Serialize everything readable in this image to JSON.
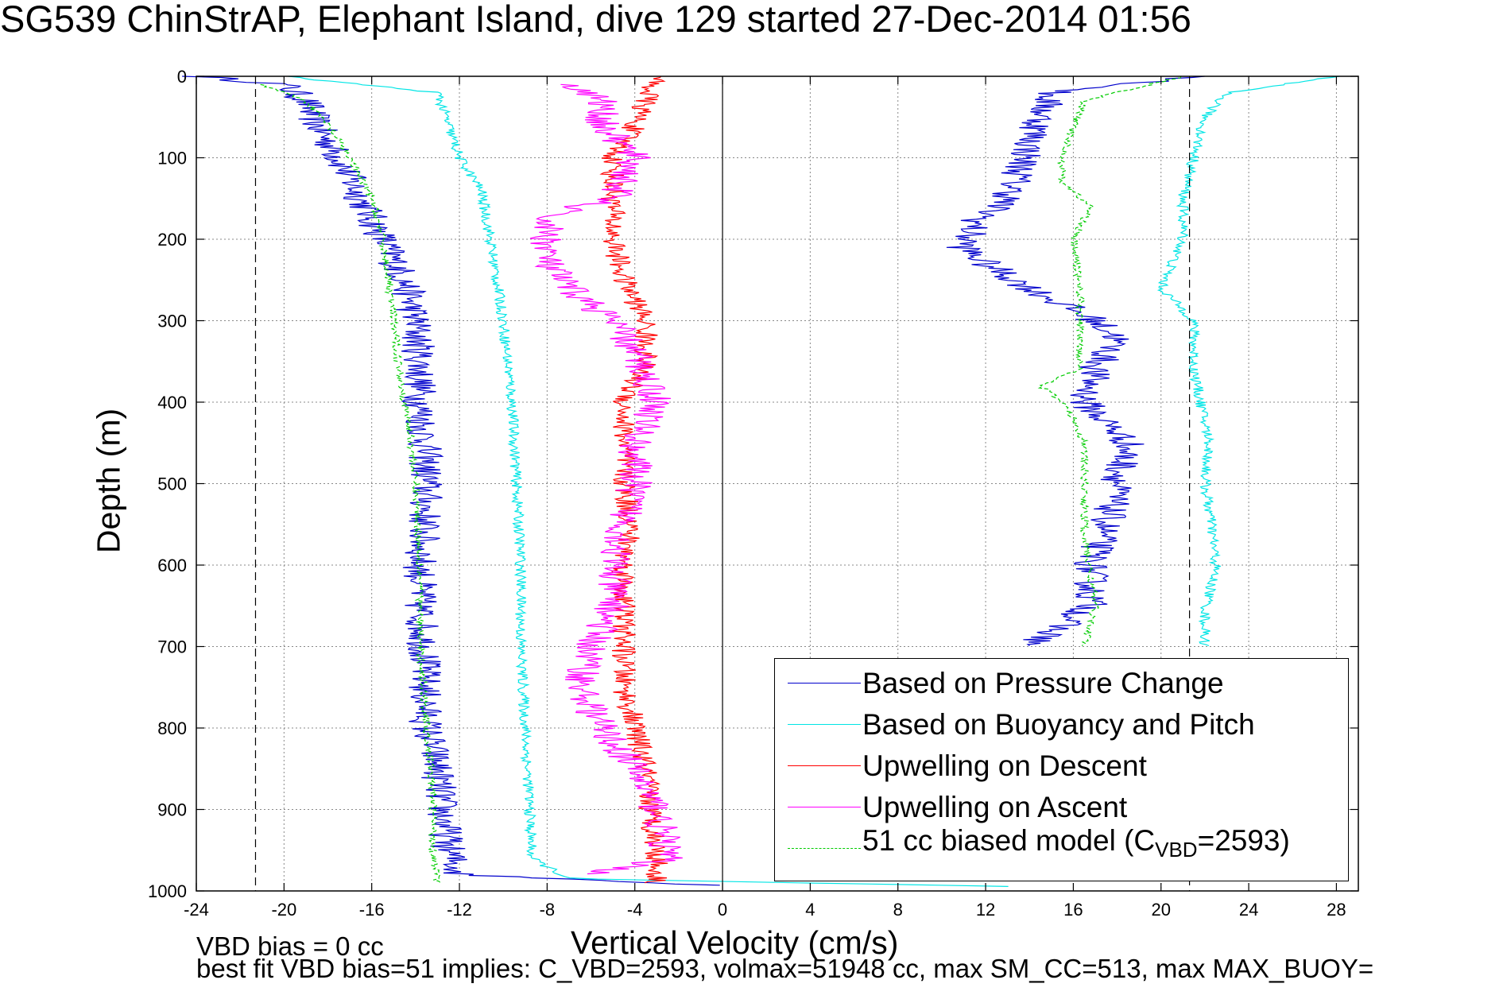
{
  "title": "SG539 ChinStrAP, Elephant Island, dive 129 started 27-Dec-2014 01:56",
  "xlabel": "Vertical Velocity (cm/s)",
  "ylabel": "Depth (m)",
  "footer_line1": "VBD bias = 0 cc",
  "footer_line2": "best fit VBD bias=51 implies: C_VBD=2593, volmax=51948 cc, max SM_CC=513, max MAX_BUOY=",
  "legend": {
    "items": [
      {
        "label": "Based on Pressure Change",
        "color": "#0000cc",
        "style": "solid"
      },
      {
        "label": "Based on Buoyancy and Pitch",
        "color": "#00e5e5",
        "style": "solid"
      },
      {
        "label": "Upwelling on Descent",
        "color": "#ff0000",
        "style": "solid"
      },
      {
        "label": "Upwelling on Ascent",
        "color": "#ff00ff",
        "style": "solid"
      },
      {
        "label_main": "51 cc biased model (C",
        "label_sub": "VBD",
        "label_end": "=2593)",
        "color": "#00cc00",
        "style": "dashed"
      }
    ]
  },
  "chart_data": {
    "type": "line",
    "xlim": [
      -24,
      29
    ],
    "ylim": [
      0,
      1000
    ],
    "y_reversed": true,
    "grid": true,
    "xticks": [
      -24,
      -20,
      -16,
      -12,
      -8,
      -4,
      0,
      4,
      8,
      12,
      16,
      20,
      24,
      28
    ],
    "yticks": [
      0,
      100,
      200,
      300,
      400,
      500,
      600,
      700,
      800,
      900,
      1000
    ],
    "reference_lines": {
      "zero": 0,
      "dashed": [
        -21.3,
        21.3
      ]
    },
    "legend_position": "bottom-right",
    "series": [
      {
        "name": "Based on Pressure Change",
        "color": "#0000cc",
        "noise": 0.8,
        "descent": [
          [
            0,
            -24
          ],
          [
            10,
            -20
          ],
          [
            30,
            -19
          ],
          [
            60,
            -18.5
          ],
          [
            100,
            -17.5
          ],
          [
            150,
            -16.5
          ],
          [
            200,
            -15.5
          ],
          [
            250,
            -14.5
          ],
          [
            300,
            -14
          ],
          [
            350,
            -13.8
          ],
          [
            400,
            -13.8
          ],
          [
            450,
            -13.6
          ],
          [
            500,
            -13.5
          ],
          [
            550,
            -13.6
          ],
          [
            600,
            -13.8
          ],
          [
            650,
            -13.8
          ],
          [
            700,
            -13.6
          ],
          [
            750,
            -13.6
          ],
          [
            800,
            -13.5
          ],
          [
            850,
            -13
          ],
          [
            900,
            -12.8
          ],
          [
            950,
            -12.5
          ],
          [
            980,
            -12
          ],
          [
            993,
            0
          ]
        ],
        "ascent": [
          [
            0,
            22
          ],
          [
            20,
            15
          ],
          [
            50,
            14.5
          ],
          [
            100,
            13.8
          ],
          [
            150,
            13
          ],
          [
            180,
            11.5
          ],
          [
            210,
            11
          ],
          [
            230,
            12
          ],
          [
            260,
            14
          ],
          [
            300,
            17
          ],
          [
            320,
            18
          ],
          [
            360,
            17
          ],
          [
            400,
            16.5
          ],
          [
            450,
            18.5
          ],
          [
            500,
            18
          ],
          [
            550,
            17.5
          ],
          [
            600,
            16.8
          ],
          [
            650,
            16.8
          ],
          [
            700,
            14
          ]
        ]
      },
      {
        "name": "Based on Buoyancy and Pitch",
        "color": "#00e5e5",
        "noise": 0.25,
        "descent": [
          [
            0,
            -20
          ],
          [
            20,
            -13
          ],
          [
            60,
            -12.5
          ],
          [
            100,
            -12
          ],
          [
            140,
            -11
          ],
          [
            200,
            -10.6
          ],
          [
            300,
            -10
          ],
          [
            400,
            -9.6
          ],
          [
            500,
            -9.4
          ],
          [
            600,
            -9.2
          ],
          [
            700,
            -9.2
          ],
          [
            800,
            -9
          ],
          [
            900,
            -8.8
          ],
          [
            960,
            -8.7
          ],
          [
            985,
            -7
          ],
          [
            995,
            14
          ]
        ],
        "ascent": [
          [
            0,
            28
          ],
          [
            20,
            23
          ],
          [
            50,
            22
          ],
          [
            100,
            21.5
          ],
          [
            150,
            21
          ],
          [
            200,
            21
          ],
          [
            260,
            20
          ],
          [
            300,
            21.5
          ],
          [
            360,
            21.5
          ],
          [
            400,
            21.8
          ],
          [
            450,
            22.2
          ],
          [
            500,
            22
          ],
          [
            550,
            22.3
          ],
          [
            600,
            22.5
          ],
          [
            660,
            22
          ],
          [
            700,
            22
          ]
        ]
      },
      {
        "name": "Upwelling on Descent",
        "color": "#ff0000",
        "noise": 0.55,
        "descent": [
          [
            0,
            -3
          ],
          [
            30,
            -3.5
          ],
          [
            60,
            -4
          ],
          [
            100,
            -5
          ],
          [
            150,
            -5
          ],
          [
            200,
            -5
          ],
          [
            250,
            -4.5
          ],
          [
            300,
            -3.5
          ],
          [
            350,
            -3.5
          ],
          [
            400,
            -4.5
          ],
          [
            450,
            -4.5
          ],
          [
            500,
            -4.5
          ],
          [
            550,
            -4.2
          ],
          [
            600,
            -4.5
          ],
          [
            650,
            -4.5
          ],
          [
            700,
            -4.5
          ],
          [
            750,
            -4.5
          ],
          [
            800,
            -4
          ],
          [
            850,
            -3.5
          ],
          [
            900,
            -3.3
          ],
          [
            950,
            -3
          ],
          [
            990,
            -3
          ]
        ]
      },
      {
        "name": "Upwelling on Ascent",
        "color": "#ff00ff",
        "noise": 0.8,
        "ascent": [
          [
            10,
            -7
          ],
          [
            30,
            -5.5
          ],
          [
            60,
            -5.5
          ],
          [
            100,
            -4
          ],
          [
            150,
            -5
          ],
          [
            170,
            -8
          ],
          [
            200,
            -8
          ],
          [
            230,
            -8
          ],
          [
            260,
            -7
          ],
          [
            300,
            -5
          ],
          [
            340,
            -4
          ],
          [
            400,
            -3
          ],
          [
            450,
            -4
          ],
          [
            500,
            -4
          ],
          [
            550,
            -4.5
          ],
          [
            600,
            -5
          ],
          [
            650,
            -5
          ],
          [
            700,
            -6
          ],
          [
            750,
            -6.5
          ],
          [
            800,
            -5.5
          ],
          [
            850,
            -4
          ],
          [
            900,
            -3
          ],
          [
            960,
            -2.5
          ],
          [
            980,
            -6
          ]
        ]
      },
      {
        "name": "51 cc biased model (CVBD=2593)",
        "color": "#00cc00",
        "dashed": true,
        "noise": 0.18,
        "descent": [
          [
            10,
            -21
          ],
          [
            30,
            -19
          ],
          [
            60,
            -18
          ],
          [
            100,
            -17
          ],
          [
            150,
            -16
          ],
          [
            200,
            -15.5
          ],
          [
            240,
            -15.3
          ],
          [
            300,
            -15
          ],
          [
            350,
            -14.8
          ],
          [
            400,
            -14.5
          ],
          [
            450,
            -14.2
          ],
          [
            500,
            -14
          ],
          [
            550,
            -13.9
          ],
          [
            600,
            -13.8
          ],
          [
            700,
            -13.8
          ],
          [
            800,
            -13.5
          ],
          [
            850,
            -13.3
          ],
          [
            900,
            -13.2
          ],
          [
            950,
            -13.2
          ],
          [
            990,
            -13
          ]
        ],
        "ascent": [
          [
            0,
            21
          ],
          [
            30,
            16.5
          ],
          [
            60,
            16
          ],
          [
            100,
            15.5
          ],
          [
            130,
            15.5
          ],
          [
            160,
            16.8
          ],
          [
            200,
            16
          ],
          [
            260,
            16.3
          ],
          [
            300,
            16.3
          ],
          [
            360,
            16.3
          ],
          [
            380,
            14.5
          ],
          [
            400,
            15.5
          ],
          [
            420,
            16
          ],
          [
            450,
            16.5
          ],
          [
            500,
            16.5
          ],
          [
            560,
            16.5
          ],
          [
            600,
            16.7
          ],
          [
            650,
            17
          ],
          [
            700,
            16.5
          ]
        ]
      }
    ]
  }
}
